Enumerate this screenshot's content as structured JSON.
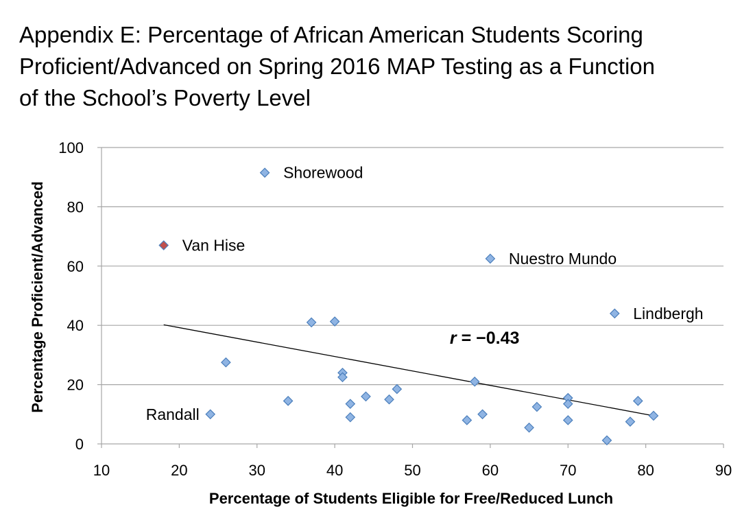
{
  "title_lines": [
    "Appendix E: Percentage of African American Students Scoring",
    "Proficient/Advanced on Spring 2016 MAP Testing as a Function",
    "of the School’s Poverty Level"
  ],
  "colors": {
    "point_fill": "#8fb4e3",
    "point_stroke": "#4a7ebb",
    "highlight_fill": "#c0504d",
    "trendline": "#000000",
    "gridline": "#a6a6a6"
  },
  "chart_data": {
    "type": "scatter",
    "title": "Appendix E: Percentage of African American Students Scoring Proficient/Advanced on Spring 2016 MAP Testing as a Function of the School’s Poverty Level",
    "xlabel": "Percentage of Students Eligible for Free/Reduced Lunch",
    "ylabel": "Percentage Proficient/Advanced",
    "xlim": [
      10,
      90
    ],
    "ylim": [
      0,
      100
    ],
    "xticks": [
      10,
      20,
      30,
      40,
      50,
      60,
      70,
      80,
      90
    ],
    "yticks": [
      0,
      20,
      40,
      60,
      80,
      100
    ],
    "grid": "horizontal",
    "legend": "none",
    "correlation_prefix": "r",
    "correlation_value": " = −0.43",
    "trendline": {
      "x": [
        18,
        81
      ],
      "y": [
        40.2,
        9.5
      ]
    },
    "points": [
      {
        "x": 31,
        "y": 91.5,
        "label": "Shorewood",
        "label_side": "right"
      },
      {
        "x": 18,
        "y": 67,
        "label": "Van Hise",
        "label_side": "right",
        "highlight": true
      },
      {
        "x": 60,
        "y": 62.5,
        "label": "Nuestro Mundo",
        "label_side": "right"
      },
      {
        "x": 76,
        "y": 44,
        "label": "Lindbergh",
        "label_side": "right"
      },
      {
        "x": 24,
        "y": 10,
        "label": "Randall",
        "label_side": "left"
      },
      {
        "x": 26,
        "y": 27.5
      },
      {
        "x": 34,
        "y": 14.5
      },
      {
        "x": 37,
        "y": 41
      },
      {
        "x": 40,
        "y": 41.3
      },
      {
        "x": 41,
        "y": 24
      },
      {
        "x": 41,
        "y": 22.5
      },
      {
        "x": 42,
        "y": 13.5
      },
      {
        "x": 42,
        "y": 9
      },
      {
        "x": 44,
        "y": 16
      },
      {
        "x": 47,
        "y": 15
      },
      {
        "x": 48,
        "y": 18.5
      },
      {
        "x": 57,
        "y": 8
      },
      {
        "x": 58,
        "y": 21
      },
      {
        "x": 59,
        "y": 10
      },
      {
        "x": 65,
        "y": 5.5
      },
      {
        "x": 66,
        "y": 12.5
      },
      {
        "x": 70,
        "y": 15.5
      },
      {
        "x": 70,
        "y": 13.5
      },
      {
        "x": 70,
        "y": 8
      },
      {
        "x": 75,
        "y": 1.2
      },
      {
        "x": 78,
        "y": 7.5
      },
      {
        "x": 79,
        "y": 14.5
      },
      {
        "x": 81,
        "y": 9.5
      }
    ]
  }
}
